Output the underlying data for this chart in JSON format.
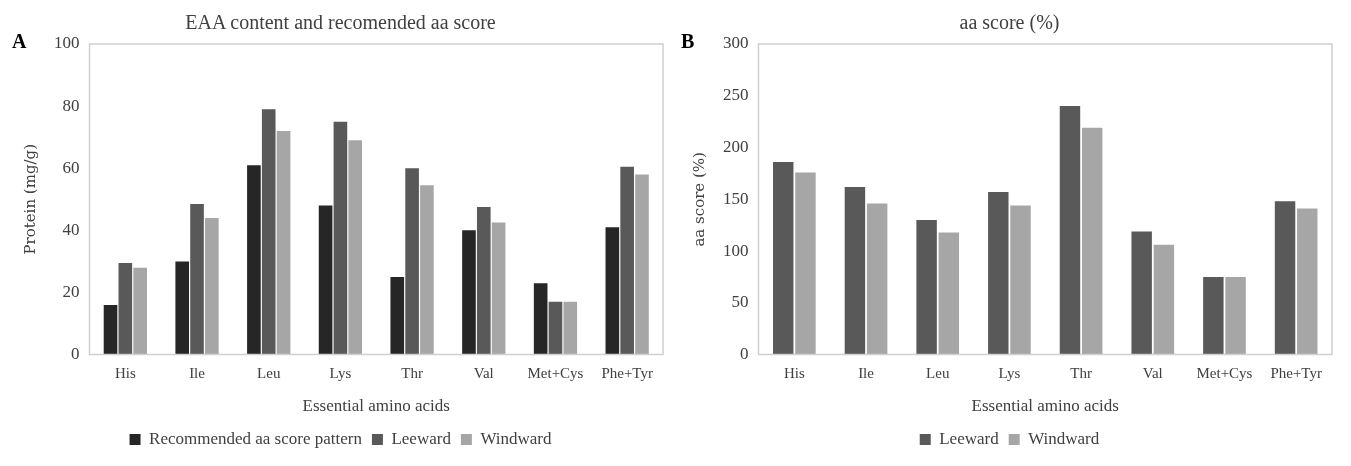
{
  "chart_data": [
    {
      "type": "bar",
      "title": "EAA content and recomended aa score",
      "xlabel": "Essential amino acids",
      "ylabel": "Protein (mg/g)",
      "annotations": [
        "A"
      ],
      "categories": [
        "His",
        "Ile",
        "Leu",
        "Lys",
        "Thr",
        "Val",
        "Met+Cys",
        "Phe+Tyr"
      ],
      "series": [
        {
          "name": "Recommended aa score pattern",
          "color": "#262626",
          "values": [
            16,
            30,
            61,
            48,
            25,
            40,
            23,
            41
          ]
        },
        {
          "name": "Leeward",
          "color": "#595959",
          "values": [
            29.5,
            48.5,
            79,
            75,
            60,
            47.5,
            17,
            60.5
          ]
        },
        {
          "name": "Windward",
          "color": "#a6a6a6",
          "values": [
            28,
            44,
            72,
            69,
            54.5,
            42.5,
            17,
            58
          ]
        }
      ],
      "ylim": [
        0,
        100
      ],
      "yticks": [
        0,
        20,
        40,
        60,
        80,
        100
      ],
      "grid": false,
      "legend": "bottom"
    },
    {
      "type": "bar",
      "title": "aa score (%)",
      "xlabel": "Essential amino acids",
      "ylabel": "aa score (%)",
      "annotations": [
        "B"
      ],
      "categories": [
        "His",
        "Ile",
        "Leu",
        "Lys",
        "Thr",
        "Val",
        "Met+Cys",
        "Phe+Tyr"
      ],
      "series": [
        {
          "name": "Leeward",
          "color": "#595959",
          "values": [
            186,
            162,
            130,
            157,
            240,
            119,
            75,
            148
          ]
        },
        {
          "name": "Windward",
          "color": "#a6a6a6",
          "values": [
            176,
            146,
            118,
            144,
            219,
            106,
            75,
            141
          ]
        }
      ],
      "ylim": [
        0,
        300
      ],
      "yticks": [
        0,
        50,
        100,
        150,
        200,
        250,
        300
      ],
      "grid": false,
      "legend": "bottom"
    }
  ]
}
